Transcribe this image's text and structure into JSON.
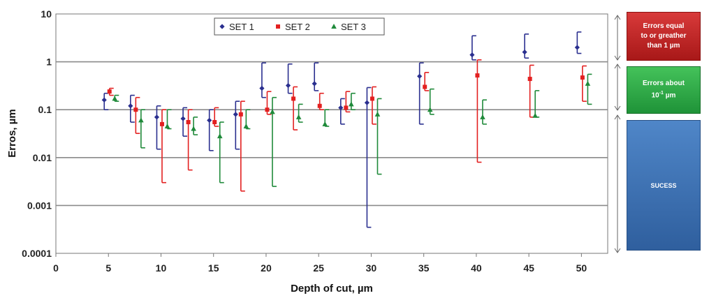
{
  "chart_data": {
    "type": "scatter",
    "subtype": "error-bars",
    "title": "",
    "xlabel": "Depth of cut, µm",
    "ylabel": "Erros, µm",
    "x_ticks": [
      0,
      5,
      10,
      15,
      20,
      25,
      30,
      35,
      40,
      45,
      50
    ],
    "xlim": [
      0,
      52.5
    ],
    "y_scale": "log",
    "ylim": [
      0.0001,
      10
    ],
    "y_ticks": [
      {
        "value": 10,
        "label": "10"
      },
      {
        "value": 1,
        "label": "1"
      },
      {
        "value": 0.1,
        "label": "0.1"
      },
      {
        "value": 0.01,
        "label": "0.01"
      },
      {
        "value": 0.001,
        "label": "0.001"
      },
      {
        "value": 0.0001,
        "label": "0.0001"
      }
    ],
    "grid": "horizontal",
    "legend_position": "top-center",
    "series": [
      {
        "name": "SET 1",
        "color": "#2a2f8f",
        "marker": "diamond",
        "points": [
          {
            "x": 4.6,
            "y": 0.16,
            "low": 0.1,
            "high": 0.22
          },
          {
            "x": 7.1,
            "y": 0.12,
            "low": 0.055,
            "high": 0.2
          },
          {
            "x": 9.6,
            "y": 0.07,
            "low": 0.015,
            "high": 0.12
          },
          {
            "x": 12.1,
            "y": 0.065,
            "low": 0.028,
            "high": 0.11
          },
          {
            "x": 14.6,
            "y": 0.06,
            "low": 0.014,
            "high": 0.1
          },
          {
            "x": 17.1,
            "y": 0.08,
            "low": 0.015,
            "high": 0.15
          },
          {
            "x": 19.6,
            "y": 0.28,
            "low": 0.18,
            "high": 0.95
          },
          {
            "x": 22.1,
            "y": 0.32,
            "low": 0.22,
            "high": 0.9
          },
          {
            "x": 24.6,
            "y": 0.35,
            "low": 0.25,
            "high": 0.95
          },
          {
            "x": 27.1,
            "y": 0.11,
            "low": 0.05,
            "high": 0.17
          },
          {
            "x": 29.6,
            "y": 0.14,
            "low": 0.00035,
            "high": 0.29
          },
          {
            "x": 34.6,
            "y": 0.5,
            "low": 0.05,
            "high": 0.95
          },
          {
            "x": 39.6,
            "y": 1.4,
            "low": 1.1,
            "high": 3.5
          },
          {
            "x": 44.6,
            "y": 1.6,
            "low": 1.2,
            "high": 3.8
          },
          {
            "x": 49.6,
            "y": 2.0,
            "low": 1.5,
            "high": 4.2
          }
        ]
      },
      {
        "name": "SET 2",
        "color": "#e32020",
        "marker": "square",
        "points": [
          {
            "x": 5.1,
            "y": 0.24,
            "low": 0.2,
            "high": 0.28
          },
          {
            "x": 7.6,
            "y": 0.1,
            "low": 0.032,
            "high": 0.18
          },
          {
            "x": 10.1,
            "y": 0.05,
            "low": 0.003,
            "high": 0.1
          },
          {
            "x": 12.6,
            "y": 0.055,
            "low": 0.0055,
            "high": 0.1
          },
          {
            "x": 15.1,
            "y": 0.055,
            "low": 0.045,
            "high": 0.11
          },
          {
            "x": 17.6,
            "y": 0.08,
            "low": 0.002,
            "high": 0.15
          },
          {
            "x": 20.1,
            "y": 0.1,
            "low": 0.08,
            "high": 0.24
          },
          {
            "x": 22.6,
            "y": 0.17,
            "low": 0.038,
            "high": 0.3
          },
          {
            "x": 25.1,
            "y": 0.12,
            "low": 0.1,
            "high": 0.22
          },
          {
            "x": 27.6,
            "y": 0.11,
            "low": 0.09,
            "high": 0.24
          },
          {
            "x": 30.1,
            "y": 0.17,
            "low": 0.05,
            "high": 0.3
          },
          {
            "x": 35.1,
            "y": 0.3,
            "low": 0.25,
            "high": 0.6
          },
          {
            "x": 40.1,
            "y": 0.52,
            "low": 0.008,
            "high": 1.1
          },
          {
            "x": 45.1,
            "y": 0.44,
            "low": 0.07,
            "high": 0.85
          },
          {
            "x": 50.1,
            "y": 0.47,
            "low": 0.15,
            "high": 0.82
          }
        ]
      },
      {
        "name": "SET 3",
        "color": "#1f8a3a",
        "marker": "triangle",
        "points": [
          {
            "x": 5.6,
            "y": 0.17,
            "low": 0.15,
            "high": 0.2
          },
          {
            "x": 8.1,
            "y": 0.06,
            "low": 0.016,
            "high": 0.1
          },
          {
            "x": 10.6,
            "y": 0.045,
            "low": 0.04,
            "high": 0.1
          },
          {
            "x": 13.1,
            "y": 0.04,
            "low": 0.03,
            "high": 0.07
          },
          {
            "x": 15.6,
            "y": 0.028,
            "low": 0.003,
            "high": 0.055
          },
          {
            "x": 18.1,
            "y": 0.045,
            "low": 0.04,
            "high": 0.1
          },
          {
            "x": 20.6,
            "y": 0.09,
            "low": 0.0025,
            "high": 0.18
          },
          {
            "x": 23.1,
            "y": 0.07,
            "low": 0.055,
            "high": 0.13
          },
          {
            "x": 25.6,
            "y": 0.05,
            "low": 0.045,
            "high": 0.1
          },
          {
            "x": 28.1,
            "y": 0.13,
            "low": 0.1,
            "high": 0.22
          },
          {
            "x": 30.6,
            "y": 0.08,
            "low": 0.0045,
            "high": 0.17
          },
          {
            "x": 35.6,
            "y": 0.1,
            "low": 0.08,
            "high": 0.27
          },
          {
            "x": 40.6,
            "y": 0.07,
            "low": 0.05,
            "high": 0.16
          },
          {
            "x": 45.6,
            "y": 0.075,
            "low": 0.07,
            "high": 0.25
          },
          {
            "x": 50.6,
            "y": 0.35,
            "low": 0.13,
            "high": 0.55
          }
        ]
      }
    ]
  },
  "zones": {
    "high": {
      "line1": "Errors equal",
      "line2": "to or greather",
      "line3": "than 1 µm",
      "color": "#c42828"
    },
    "mid": {
      "line1": "Errors about",
      "exp_base": "10",
      "exp": "-1",
      "unit": "µm",
      "color": "#2fa347"
    },
    "low": {
      "label": "SUCESS",
      "color": "#3f72b5"
    }
  }
}
